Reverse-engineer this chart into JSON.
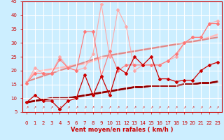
{
  "title": "",
  "xlabel": "Vent moyen/en rafales ( km/h )",
  "xlim": [
    -0.5,
    23.5
  ],
  "ylim": [
    5,
    45
  ],
  "yticks": [
    5,
    10,
    15,
    20,
    25,
    30,
    35,
    40,
    45
  ],
  "xticks": [
    0,
    1,
    2,
    3,
    4,
    5,
    6,
    7,
    8,
    9,
    10,
    11,
    12,
    13,
    14,
    15,
    16,
    17,
    18,
    19,
    20,
    21,
    22,
    23
  ],
  "bg_color": "#cceeff",
  "grid_color": "#ffffff",
  "lines": [
    {
      "x": [
        0,
        1,
        2,
        3,
        4,
        5,
        6,
        7,
        8,
        9,
        10,
        11,
        12,
        13,
        14,
        15,
        16,
        17,
        18,
        19,
        20,
        21,
        22,
        23
      ],
      "y": [
        15.5,
        21,
        19,
        19,
        25,
        21,
        20,
        21,
        26,
        44,
        25,
        42,
        36,
        20,
        22,
        22,
        22,
        23.5,
        25,
        30,
        32,
        32,
        37,
        38
      ],
      "color": "#ffaaaa",
      "lw": 0.8,
      "marker": "D",
      "ms": 2.0,
      "zorder": 2
    },
    {
      "x": [
        0,
        1,
        2,
        3,
        4,
        5,
        6,
        7,
        8,
        9,
        10,
        11,
        12,
        13,
        14,
        15,
        16,
        17,
        18,
        19,
        20,
        21,
        22,
        23
      ],
      "y": [
        15.5,
        19,
        19,
        19,
        24,
        21,
        20,
        34,
        34,
        18,
        27,
        20,
        22,
        22,
        22,
        22,
        22,
        23.5,
        26,
        30,
        32,
        32,
        37,
        37
      ],
      "color": "#ff7777",
      "lw": 0.8,
      "marker": "D",
      "ms": 2.0,
      "zorder": 2
    },
    {
      "x": [
        0,
        1,
        2,
        3,
        4,
        5,
        6,
        7,
        8,
        9,
        10,
        11,
        12,
        13,
        14,
        15,
        16,
        17,
        18,
        19,
        20,
        21,
        22,
        23
      ],
      "y": [
        15.8,
        19.5,
        20.0,
        20.5,
        21.0,
        21.5,
        22.0,
        22.5,
        23.5,
        24.5,
        25.5,
        26.0,
        26.5,
        27.0,
        27.5,
        28.0,
        28.5,
        29.0,
        29.5,
        30.0,
        30.5,
        31.0,
        32.0,
        33.0
      ],
      "color": "#ffbbbb",
      "lw": 1.8,
      "marker": null,
      "ms": 0,
      "zorder": 1
    },
    {
      "x": [
        0,
        1,
        2,
        3,
        4,
        5,
        6,
        7,
        8,
        9,
        10,
        11,
        12,
        13,
        14,
        15,
        16,
        17,
        18,
        19,
        20,
        21,
        22,
        23
      ],
      "y": [
        16.0,
        17.0,
        18.0,
        19.0,
        20.0,
        21.0,
        22.0,
        23.0,
        24.0,
        25.0,
        25.5,
        26.0,
        26.5,
        27.0,
        27.5,
        28.0,
        28.5,
        29.0,
        29.5,
        30.0,
        30.5,
        31.0,
        31.5,
        32.0
      ],
      "color": "#dd8888",
      "lw": 1.5,
      "marker": null,
      "ms": 0,
      "zorder": 1
    },
    {
      "x": [
        0,
        1,
        2,
        3,
        4,
        5,
        6,
        7,
        8,
        9,
        10,
        11,
        12,
        13,
        14,
        15,
        16,
        17,
        18,
        19,
        20,
        21,
        22,
        23
      ],
      "y": [
        8.5,
        11,
        9,
        9,
        6,
        9,
        10,
        18.5,
        11,
        18,
        11,
        21,
        19,
        25,
        22,
        25,
        17,
        17,
        16,
        16.5,
        16.5,
        20,
        22,
        23
      ],
      "color": "#cc0000",
      "lw": 0.9,
      "marker": "D",
      "ms": 2.0,
      "zorder": 3
    },
    {
      "x": [
        0,
        1,
        2,
        3,
        4,
        5,
        6,
        7,
        8,
        9,
        10,
        11,
        12,
        13,
        14,
        15,
        16,
        17,
        18,
        19,
        20,
        21,
        22,
        23
      ],
      "y": [
        8.5,
        9.0,
        9.5,
        10.0,
        10.0,
        10.0,
        10.5,
        11.0,
        11.5,
        12.0,
        12.5,
        13.0,
        13.5,
        14.0,
        14.0,
        14.5,
        14.5,
        14.5,
        14.5,
        15.0,
        15.0,
        15.5,
        15.5,
        16.0
      ],
      "color": "#cc0000",
      "lw": 2.0,
      "marker": null,
      "ms": 0,
      "zorder": 1
    },
    {
      "x": [
        0,
        1,
        2,
        3,
        4,
        5,
        6,
        7,
        8,
        9,
        10,
        11,
        12,
        13,
        14,
        15,
        16,
        17,
        18,
        19,
        20,
        21,
        22,
        23
      ],
      "y": [
        8.5,
        9.0,
        9.5,
        10.0,
        10.0,
        10.0,
        10.5,
        11.0,
        11.5,
        12.0,
        12.5,
        13.0,
        13.5,
        14.0,
        14.0,
        14.5,
        14.5,
        14.5,
        14.5,
        15.0,
        15.0,
        15.5,
        15.5,
        16.0
      ],
      "color": "#880000",
      "lw": 1.5,
      "marker": null,
      "ms": 0,
      "zorder": 1
    }
  ],
  "arrow_color": "#cc0000",
  "font_color": "#cc0000",
  "tick_fontsize": 5,
  "xlabel_fontsize": 6
}
